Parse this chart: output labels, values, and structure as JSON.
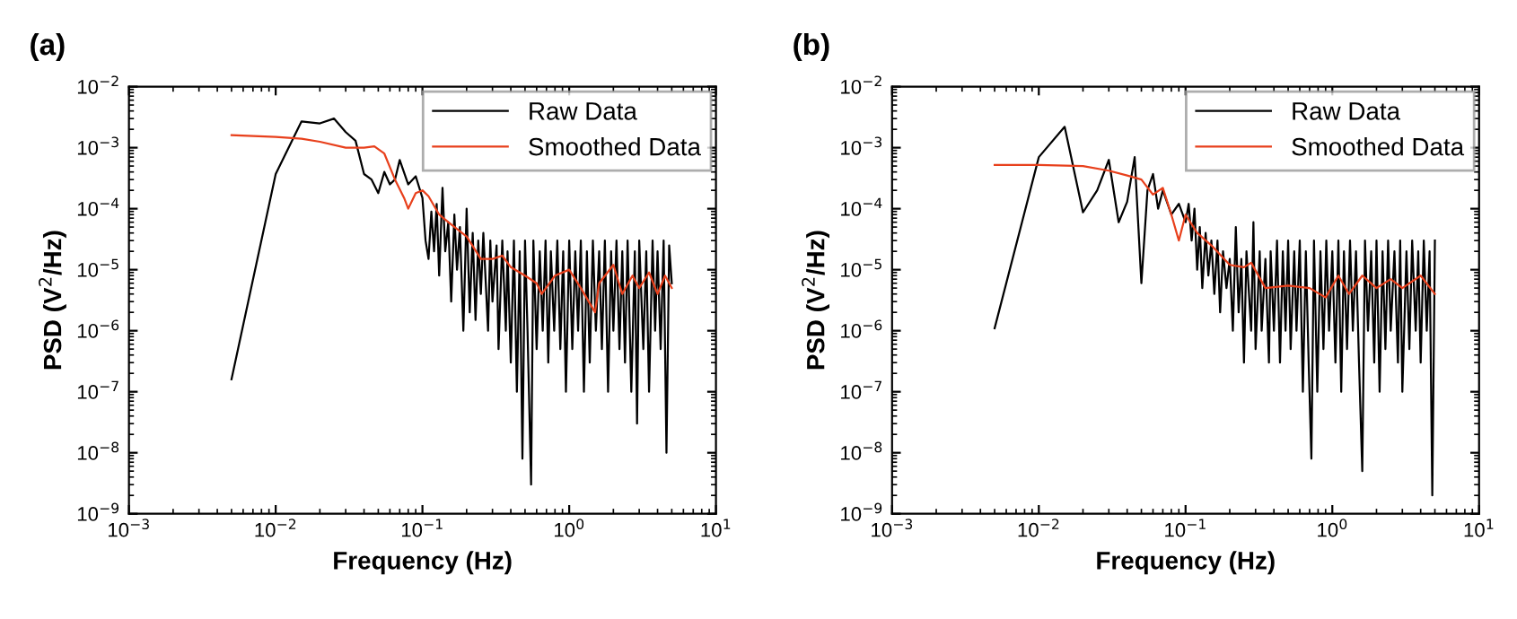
{
  "chart_data": [
    {
      "type": "line",
      "title": "(a)",
      "xlabel": "Frequency (Hz)",
      "ylabel": "PSD (V$^{2}$/Hz)",
      "log": "xy",
      "legend": "top right",
      "grid": false,
      "xlim": [
        0.001,
        10
      ],
      "ylim": [
        1e-09,
        0.01
      ],
      "xticks": [
        {
          "value": 0.001,
          "label": "10$^{−3}$"
        },
        {
          "value": 0.01,
          "label": "10$^{−2}$"
        },
        {
          "value": 0.1,
          "label": "10$^{−1}$"
        },
        {
          "value": 1,
          "label": "10$^{0}$"
        },
        {
          "value": 10,
          "label": "10$^{1}$"
        }
      ],
      "yticks": [
        {
          "value": 1e-09,
          "label": "10$^{−9}$"
        },
        {
          "value": 1e-08,
          "label": "10$^{−8}$"
        },
        {
          "value": 1e-07,
          "label": "10$^{−7}$"
        },
        {
          "value": 1e-06,
          "label": "10$^{−6}$"
        },
        {
          "value": 1e-05,
          "label": "10$^{−5}$"
        },
        {
          "value": 0.0001,
          "label": "10$^{−4}$"
        },
        {
          "value": 0.001,
          "label": "10$^{−3}$"
        },
        {
          "value": 0.01,
          "label": "10$^{−2}$"
        }
      ],
      "series": [
        {
          "name": "Raw Data",
          "color": "#000000",
          "x": [
            0.005,
            0.01,
            0.015,
            0.02,
            0.025,
            0.03,
            0.035,
            0.04,
            0.045,
            0.05,
            0.055,
            0.06,
            0.065,
            0.07,
            0.08,
            0.09,
            0.1,
            0.105,
            0.11,
            0.115,
            0.12,
            0.125,
            0.13,
            0.137,
            0.143,
            0.15,
            0.157,
            0.165,
            0.172,
            0.18,
            0.19,
            0.2,
            0.21,
            0.22,
            0.23,
            0.24,
            0.25,
            0.26,
            0.28,
            0.29,
            0.3,
            0.32,
            0.33,
            0.35,
            0.37,
            0.38,
            0.4,
            0.42,
            0.44,
            0.46,
            0.48,
            0.5,
            0.52,
            0.55,
            0.57,
            0.6,
            0.63,
            0.66,
            0.69,
            0.72,
            0.75,
            0.79,
            0.83,
            0.87,
            0.91,
            0.95,
            1.0,
            1.05,
            1.1,
            1.15,
            1.2,
            1.26,
            1.32,
            1.38,
            1.45,
            1.52,
            1.6,
            1.67,
            1.75,
            1.84,
            1.93,
            2.0,
            2.1,
            2.2,
            2.3,
            2.4,
            2.5,
            2.65,
            2.8,
            2.9,
            3.0,
            3.2,
            3.35,
            3.5,
            3.7,
            3.85,
            4.0,
            4.2,
            4.4,
            4.6,
            4.8,
            5.0
          ],
          "values": [
            1.6e-07,
            0.00037,
            0.0027,
            0.0025,
            0.003,
            0.0018,
            0.0013,
            0.00037,
            0.0003,
            0.00018,
            0.0004,
            0.00025,
            0.0003,
            0.00063,
            0.00025,
            0.00034,
            0.00015,
            3e-05,
            1.5e-05,
            9e-05,
            2e-05,
            0.00012,
            8e-06,
            0.00022,
            2e-05,
            6e-05,
            3e-06,
            8e-05,
            1e-05,
            5e-05,
            1e-06,
            0.0001,
            2e-06,
            4e-05,
            1.5e-06,
            3e-05,
            4e-06,
            4e-05,
            1e-06,
            3e-05,
            3e-06,
            2.5e-05,
            5e-07,
            3e-05,
            1e-06,
            2e-05,
            3e-07,
            3e-05,
            1e-07,
            2e-05,
            8e-09,
            3e-05,
            1e-06,
            3e-09,
            3e-05,
            5e-07,
            2e-05,
            1e-06,
            3e-05,
            3e-07,
            2e-05,
            1e-06,
            3e-05,
            5e-07,
            2e-05,
            1e-07,
            3e-05,
            5e-07,
            2e-05,
            1e-06,
            3e-05,
            1e-07,
            2e-05,
            3e-07,
            3e-05,
            1e-06,
            2e-05,
            5e-07,
            3e-05,
            1e-07,
            2e-05,
            1e-06,
            3e-05,
            5e-07,
            2e-05,
            3e-07,
            3e-05,
            1e-07,
            2e-05,
            3e-08,
            3e-05,
            5e-07,
            2e-05,
            1e-07,
            3e-05,
            1e-06,
            2e-05,
            5e-07,
            3e-05,
            1e-08,
            2.5e-05,
            6e-06
          ]
        },
        {
          "name": "Smoothed Data",
          "color": "#e8401c",
          "x": [
            0.005,
            0.01,
            0.015,
            0.02,
            0.03,
            0.04,
            0.047,
            0.055,
            0.065,
            0.075,
            0.08,
            0.09,
            0.1,
            0.11,
            0.13,
            0.15,
            0.2,
            0.25,
            0.3,
            0.35,
            0.4,
            0.5,
            0.6,
            0.65,
            0.8,
            1,
            1.2,
            1.5,
            1.6,
            2,
            2.3,
            2.7,
            3,
            3.5,
            4,
            4.5,
            5
          ],
          "values": [
            0.0016,
            0.0015,
            0.0014,
            0.00125,
            0.001,
            0.001,
            0.00105,
            0.0008,
            0.0003,
            0.00015,
            0.0001,
            0.00018,
            0.0002,
            0.00016,
            8e-05,
            6e-05,
            3.5e-05,
            1.5e-05,
            1.5e-05,
            1.7e-05,
            1.1e-05,
            8e-06,
            6e-06,
            4e-06,
            8e-06,
            1e-05,
            5e-06,
            2e-06,
            6e-06,
            1.2e-05,
            4e-06,
            8e-06,
            5e-06,
            9e-06,
            4e-06,
            8e-06,
            5e-06
          ]
        }
      ]
    },
    {
      "type": "line",
      "title": "(b)",
      "xlabel": "Frequency (Hz)",
      "ylabel": "PSD (V$^{2}$/Hz)",
      "log": "xy",
      "legend": "top right",
      "grid": false,
      "xlim": [
        0.001,
        10
      ],
      "ylim": [
        1e-09,
        0.01
      ],
      "xticks": [
        {
          "value": 0.001,
          "label": "10$^{−3}$"
        },
        {
          "value": 0.01,
          "label": "10$^{−2}$"
        },
        {
          "value": 0.1,
          "label": "10$^{−1}$"
        },
        {
          "value": 1,
          "label": "10$^{0}$"
        },
        {
          "value": 10,
          "label": "10$^{1}$"
        }
      ],
      "yticks": [
        {
          "value": 1e-09,
          "label": "10$^{−9}$"
        },
        {
          "value": 1e-08,
          "label": "10$^{−8}$"
        },
        {
          "value": 1e-07,
          "label": "10$^{−7}$"
        },
        {
          "value": 1e-06,
          "label": "10$^{−6}$"
        },
        {
          "value": 1e-05,
          "label": "10$^{−5}$"
        },
        {
          "value": 0.0001,
          "label": "10$^{−4}$"
        },
        {
          "value": 0.001,
          "label": "10$^{−3}$"
        },
        {
          "value": 0.01,
          "label": "10$^{−2}$"
        }
      ],
      "series": [
        {
          "name": "Raw Data",
          "color": "#000000",
          "x": [
            0.005,
            0.01,
            0.015,
            0.02,
            0.025,
            0.03,
            0.035,
            0.04,
            0.045,
            0.05,
            0.055,
            0.06,
            0.065,
            0.07,
            0.08,
            0.09,
            0.1,
            0.105,
            0.11,
            0.115,
            0.12,
            0.125,
            0.13,
            0.137,
            0.143,
            0.15,
            0.157,
            0.165,
            0.172,
            0.18,
            0.19,
            0.2,
            0.21,
            0.22,
            0.23,
            0.24,
            0.25,
            0.26,
            0.28,
            0.29,
            0.3,
            0.32,
            0.33,
            0.35,
            0.37,
            0.38,
            0.4,
            0.42,
            0.44,
            0.46,
            0.48,
            0.5,
            0.52,
            0.55,
            0.57,
            0.6,
            0.63,
            0.66,
            0.69,
            0.72,
            0.75,
            0.79,
            0.83,
            0.87,
            0.91,
            0.95,
            1.0,
            1.05,
            1.1,
            1.15,
            1.2,
            1.26,
            1.32,
            1.38,
            1.45,
            1.52,
            1.6,
            1.67,
            1.75,
            1.84,
            1.93,
            2.0,
            2.1,
            2.2,
            2.3,
            2.4,
            2.5,
            2.65,
            2.8,
            2.9,
            3.0,
            3.2,
            3.35,
            3.5,
            3.7,
            3.85,
            4.0,
            4.2,
            4.4,
            4.6,
            4.8,
            5.0
          ],
          "values": [
            1.1e-06,
            0.0007,
            0.0022,
            8.7e-05,
            0.0002,
            0.00063,
            6e-05,
            0.00013,
            0.0007,
            6e-06,
            0.0002,
            0.00037,
            0.0001,
            0.0002,
            8e-05,
            0.00012,
            6e-05,
            0.00012,
            3e-05,
            0.0001,
            1e-05,
            5e-05,
            5e-06,
            4e-05,
            8e-06,
            3e-05,
            4e-06,
            3e-05,
            2e-06,
            2e-05,
            5e-06,
            1.5e-05,
            1e-06,
            5e-05,
            2e-06,
            1.5e-05,
            3e-07,
            2e-05,
            1e-06,
            6e-05,
            5e-07,
            2e-05,
            1e-06,
            1.5e-05,
            3e-07,
            2e-05,
            1e-06,
            3e-05,
            3e-07,
            2e-05,
            1e-06,
            3e-05,
            5e-07,
            2e-05,
            1e-06,
            3e-05,
            1e-07,
            2e-05,
            3e-07,
            8e-09,
            3e-05,
            1e-07,
            2e-05,
            5e-07,
            3e-05,
            1e-06,
            2e-05,
            3e-07,
            3e-05,
            1e-07,
            2e-05,
            5e-07,
            3e-05,
            1e-06,
            2e-05,
            3e-07,
            5e-09,
            3e-05,
            1e-06,
            2e-05,
            3e-07,
            3e-05,
            1e-07,
            2e-05,
            5e-07,
            3e-05,
            1e-06,
            2e-05,
            3e-07,
            3e-05,
            1e-07,
            2e-05,
            5e-07,
            3e-05,
            1e-06,
            2e-05,
            3e-07,
            3e-05,
            1e-06,
            2e-05,
            2e-09,
            3e-05
          ]
        },
        {
          "name": "Smoothed Data",
          "color": "#e8401c",
          "x": [
            0.005,
            0.01,
            0.02,
            0.03,
            0.04,
            0.05,
            0.06,
            0.07,
            0.08,
            0.09,
            0.1,
            0.12,
            0.15,
            0.2,
            0.25,
            0.28,
            0.35,
            0.5,
            0.7,
            0.9,
            1.1,
            1.3,
            1.6,
            2,
            2.5,
            3,
            4,
            5
          ],
          "values": [
            0.00052,
            0.00052,
            0.0005,
            0.00042,
            0.00035,
            0.0003,
            0.00017,
            0.00022,
            8e-05,
            3e-05,
            8e-05,
            4e-05,
            2.5e-05,
            1.2e-05,
            1.1e-05,
            1.3e-05,
            5e-06,
            5.5e-06,
            5e-06,
            3.5e-06,
            8e-06,
            4e-06,
            8e-06,
            5e-06,
            7e-06,
            5e-06,
            8e-06,
            4e-06
          ]
        }
      ]
    }
  ]
}
